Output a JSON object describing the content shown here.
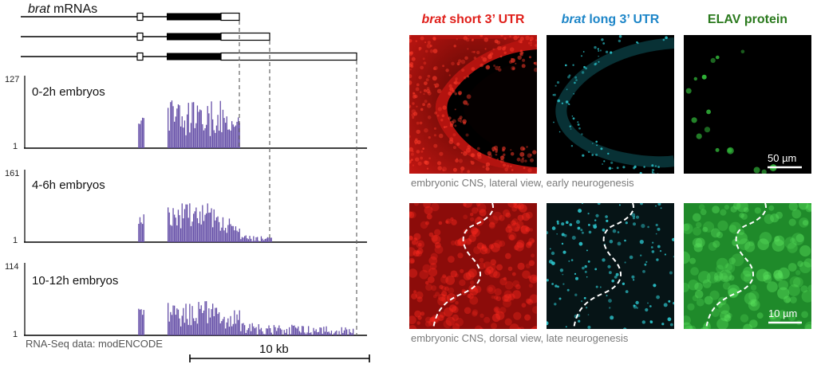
{
  "left": {
    "title_gene": "brat",
    "title_rest": "mRNAs",
    "tracks": [
      {
        "name": "0-2h embryos",
        "ymax": "127",
        "ymin": "1",
        "seed": 11,
        "bodyLevel": 0.55,
        "tailLevel": 0.02,
        "tailEnd": 0.62
      },
      {
        "name": "4-6h embryos",
        "ymax": "161",
        "ymin": "1",
        "seed": 29,
        "bodyLevel": 0.45,
        "tailLevel": 0.12,
        "tailEnd": 0.72
      },
      {
        "name": "10-12h embryos",
        "ymax": "114",
        "ymin": "1",
        "seed": 47,
        "bodyLevel": 0.4,
        "tailLevel": 0.18,
        "tailEnd": 0.96
      }
    ],
    "source": "RNA-Seq data: modENCODE",
    "scalebar": "10 kb",
    "bar_color": "#6650a8"
  },
  "right": {
    "headers": [
      {
        "gene": "brat",
        "rest": "short 3’ UTR",
        "color": "#e0201b"
      },
      {
        "gene": "brat",
        "rest": "long 3’ UTR",
        "color": "#1e86c8"
      },
      {
        "gene": "",
        "rest": "ELAV protein",
        "color": "#2b7a1e"
      }
    ],
    "caption_top": "embryonic CNS, lateral view, early neurogenesis",
    "caption_bottom": "embryonic CNS, dorsal view, late neurogenesis",
    "scale_top": "50 µm",
    "scale_bottom": "10 µm",
    "channel_colors": {
      "red": "#e0201b",
      "cyan": "#2fd0d8",
      "green": "#32b83a"
    }
  }
}
